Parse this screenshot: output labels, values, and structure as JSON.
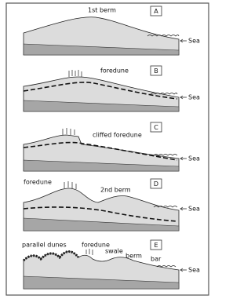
{
  "panels": [
    {
      "letter": "A",
      "sea": "Sea",
      "labels": [
        "1st berm"
      ]
    },
    {
      "letter": "B",
      "sea": "Sea",
      "labels": [
        "foredune"
      ]
    },
    {
      "letter": "C",
      "sea": "Sea",
      "labels": [
        "cliffed foredune"
      ]
    },
    {
      "letter": "D",
      "sea": "Sea",
      "labels": [
        "foredune",
        "2nd berm"
      ]
    },
    {
      "letter": "E",
      "sea": "Sea",
      "labels": [
        "parallel dunes",
        "foredune",
        "swale",
        "berm",
        "bar"
      ]
    }
  ]
}
